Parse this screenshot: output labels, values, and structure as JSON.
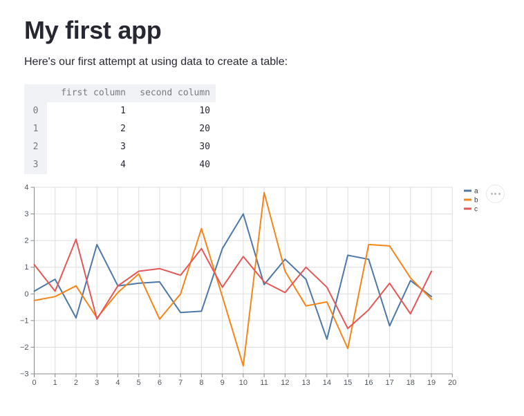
{
  "app": {
    "title": "My first app",
    "intro": "Here's our first attempt at using data to create a table:"
  },
  "table": {
    "columns": [
      "first column",
      "second column"
    ],
    "index": [
      "0",
      "1",
      "2",
      "3"
    ],
    "rows": [
      [
        "1",
        "10"
      ],
      [
        "2",
        "20"
      ],
      [
        "3",
        "30"
      ],
      [
        "4",
        "40"
      ]
    ]
  },
  "chart_data": {
    "type": "line",
    "x": [
      0,
      1,
      2,
      3,
      4,
      5,
      6,
      7,
      8,
      9,
      10,
      11,
      12,
      13,
      14,
      15,
      16,
      17,
      18,
      19
    ],
    "series": [
      {
        "name": "a",
        "color": "#4c78a8",
        "values": [
          0.1,
          0.55,
          -0.9,
          1.85,
          0.3,
          0.4,
          0.45,
          -0.7,
          -0.65,
          1.7,
          3.0,
          0.35,
          1.3,
          0.55,
          -1.7,
          1.45,
          1.3,
          -1.2,
          0.5,
          -0.1
        ]
      },
      {
        "name": "b",
        "color": "#f58518",
        "values": [
          -0.25,
          -0.1,
          0.3,
          -0.9,
          0.05,
          0.75,
          -0.95,
          0.0,
          2.45,
          -0.1,
          -2.7,
          3.8,
          0.85,
          -0.45,
          -0.3,
          -2.05,
          1.85,
          1.8,
          0.6,
          -0.2
        ]
      },
      {
        "name": "c",
        "color": "#e45756",
        "values": [
          1.1,
          0.1,
          2.05,
          -0.95,
          0.3,
          0.85,
          0.95,
          0.7,
          1.7,
          0.25,
          1.4,
          0.45,
          0.05,
          1.0,
          0.25,
          -1.3,
          -0.6,
          0.4,
          -0.75,
          0.85
        ]
      }
    ],
    "xlim": [
      0,
      20
    ],
    "ylim": [
      -3,
      4
    ],
    "xticks": [
      0,
      1,
      2,
      3,
      4,
      5,
      6,
      7,
      8,
      9,
      10,
      11,
      12,
      13,
      14,
      15,
      16,
      17,
      18,
      19,
      20
    ],
    "yticks": [
      4,
      3,
      2,
      1,
      0,
      -1,
      -2,
      -3
    ],
    "grid": true,
    "legend_position": "top-right",
    "legend_entries": [
      "a",
      "b",
      "c"
    ],
    "colors": {
      "grid": "#dddddd",
      "axis_domain": "#888888",
      "axis_label": "#4d545d",
      "legend_label": "#33363d"
    }
  },
  "chart_toolbar": {
    "menu_icon": "ellipsis-icon"
  }
}
